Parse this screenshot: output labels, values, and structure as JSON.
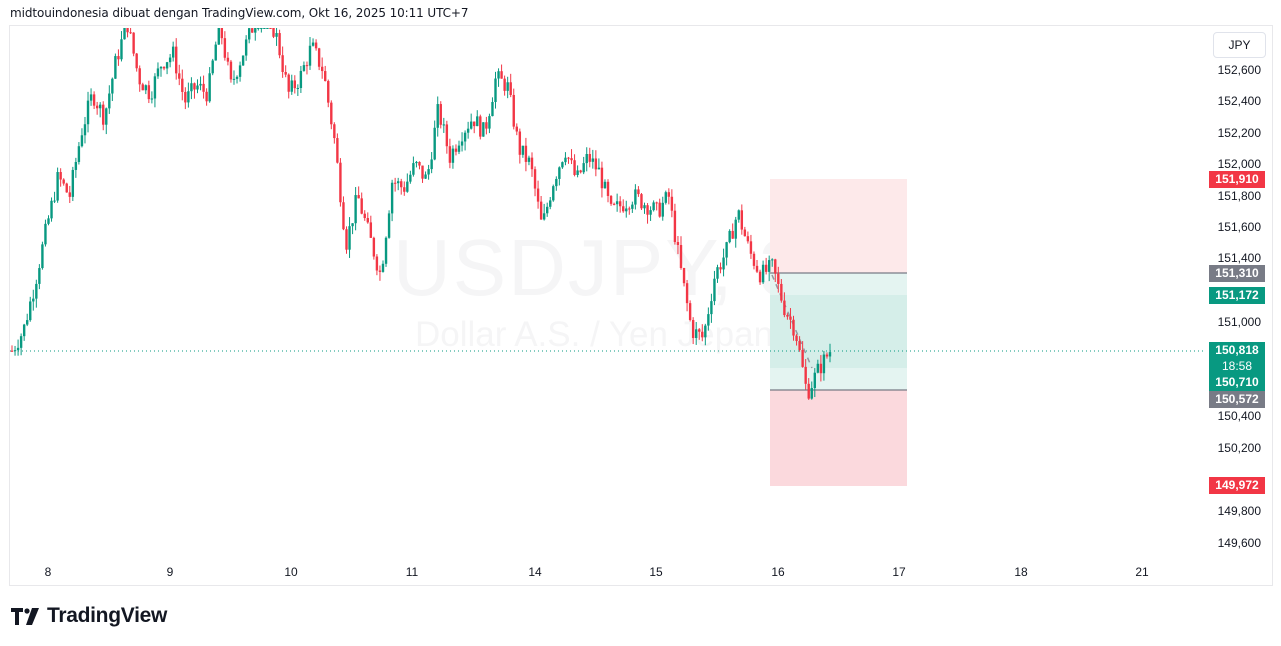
{
  "caption": "midtouindonesia dibuat dengan TradingView.com, Okt 16, 2025 10:11 UTC+7",
  "watermark": {
    "symbol": "USDJPY, 30",
    "description": "Dollar A.S. / Yen Jepang"
  },
  "price_axis": {
    "unit_button": "JPY",
    "ticks": [
      "152,600",
      "152,400",
      "152,200",
      "152,000",
      "151,800",
      "151,600",
      "151,400",
      "151,000",
      "150,400",
      "150,200",
      "149,800",
      "149,600"
    ]
  },
  "badges": {
    "stop_upper": {
      "label": "151,910",
      "color": "#f23645"
    },
    "entry": {
      "label": "151,310",
      "color": "#787b86"
    },
    "mid_target": {
      "label": "151,172",
      "color": "#089981"
    },
    "current_price": {
      "label": "150,818",
      "timer": "18:58",
      "color": "#089981"
    },
    "target": {
      "label": "150,710",
      "color": "#089981"
    },
    "entry_lower": {
      "label": "150,572",
      "color": "#787b86"
    },
    "stop_lower": {
      "label": "149,972",
      "color": "#f23645"
    }
  },
  "time_axis": [
    "8",
    "9",
    "10",
    "11",
    "14",
    "15",
    "16",
    "17",
    "18",
    "21"
  ],
  "branding": {
    "logo_text": "TradingView"
  },
  "colors": {
    "up": "#089981",
    "down": "#f23645",
    "profit_zone": "#d2ede8",
    "loss_zone": "#fde6e8"
  },
  "chart_data": {
    "type": "candlestick",
    "title": "USDJPY, 30",
    "subtitle": "Dollar A.S. / Yen Jepang",
    "xlabel": "",
    "ylabel": "JPY",
    "ylim": [
      149500,
      152750
    ],
    "x_ticks": [
      "8",
      "9",
      "10",
      "11",
      "14",
      "15",
      "16",
      "17",
      "18",
      "21"
    ],
    "current_price": 150.818,
    "path": [
      [
        "8",
        150.82
      ],
      [
        "8",
        150.95
      ],
      [
        "8",
        151.25
      ],
      [
        "8",
        151.6
      ],
      [
        "8",
        151.92
      ],
      [
        "8",
        151.8
      ],
      [
        "8",
        152.2
      ],
      [
        "8",
        152.45
      ],
      [
        "9",
        152.3
      ],
      [
        "9",
        152.65
      ],
      [
        "9",
        152.9
      ],
      [
        "9",
        152.55
      ],
      [
        "9",
        152.45
      ],
      [
        "9",
        152.65
      ],
      [
        "9",
        152.7
      ],
      [
        "9",
        152.4
      ],
      [
        "9",
        152.5
      ],
      [
        "9",
        152.45
      ],
      [
        "9",
        152.9
      ],
      [
        "9",
        152.5
      ],
      [
        "9",
        152.7
      ],
      [
        "10",
        152.9
      ],
      [
        "10",
        153.0
      ],
      [
        "10",
        152.8
      ],
      [
        "10",
        152.45
      ],
      [
        "10",
        152.55
      ],
      [
        "10",
        152.75
      ],
      [
        "10",
        152.6
      ],
      [
        "10",
        152.15
      ],
      [
        "10",
        151.5
      ],
      [
        "11",
        151.8
      ],
      [
        "11",
        151.55
      ],
      [
        "11",
        151.3
      ],
      [
        "11",
        151.9
      ],
      [
        "11",
        151.85
      ],
      [
        "11",
        152.0
      ],
      [
        "11",
        151.9
      ],
      [
        "11",
        152.35
      ],
      [
        "11",
        152.05
      ],
      [
        "11",
        152.2
      ],
      [
        "11",
        152.3
      ],
      [
        "11",
        152.2
      ],
      [
        "11",
        152.55
      ],
      [
        "14",
        152.5
      ],
      [
        "14",
        152.1
      ],
      [
        "14",
        152.0
      ],
      [
        "14",
        151.6
      ],
      [
        "14",
        151.9
      ],
      [
        "14",
        152.1
      ],
      [
        "14",
        151.9
      ],
      [
        "14",
        152.05
      ],
      [
        "14",
        151.95
      ],
      [
        "14",
        151.7
      ],
      [
        "14",
        151.75
      ],
      [
        "14",
        151.8
      ],
      [
        "14",
        151.75
      ],
      [
        "14",
        151.7
      ],
      [
        "14",
        151.8
      ],
      [
        "15",
        151.35
      ],
      [
        "15",
        150.95
      ],
      [
        "15",
        150.9
      ],
      [
        "15",
        151.3
      ],
      [
        "15",
        151.45
      ],
      [
        "15",
        151.7
      ],
      [
        "15",
        151.45
      ],
      [
        "16",
        151.3
      ],
      [
        "16",
        151.35
      ],
      [
        "16",
        151.1
      ],
      [
        "16",
        150.95
      ],
      [
        "16",
        150.55
      ],
      [
        "16",
        150.7
      ],
      [
        "16",
        150.82
      ]
    ]
  }
}
